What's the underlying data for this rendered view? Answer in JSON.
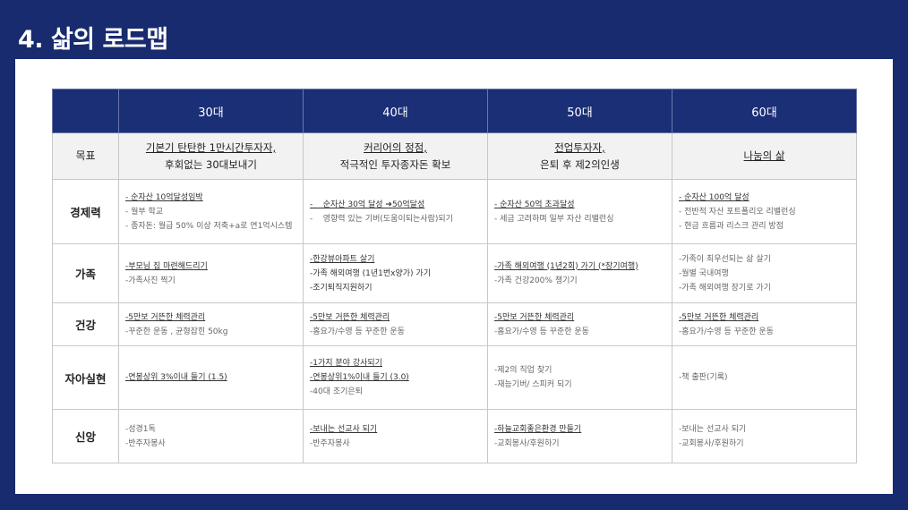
{
  "title": "4. 삶의 로드맵",
  "columns": [
    "",
    "30대",
    "40대",
    "50대",
    "60대"
  ],
  "goal": {
    "label": "목표",
    "cells": [
      [
        "기본기 탄탄한 1만시간투자자,",
        "후회없는 30대보내기"
      ],
      [
        "커리어의 정점,",
        "적극적인 투자종자돈 확보"
      ],
      [
        "전업투자자,",
        "은퇴 후 제2의인생"
      ],
      [
        "나눔의 삶"
      ]
    ]
  },
  "rows": [
    {
      "label": "경제력",
      "cells": [
        [
          {
            "t": "- 순자산 10억달성임박",
            "u": true
          },
          {
            "t": "- 월부 학교"
          },
          {
            "t": "- 종자돈: 월급 50% 이상 저축+a로 연1억시스템"
          }
        ],
        [
          {
            "t": "-    순자산 30억 달성 ➔50억달성",
            "u": true
          },
          {
            "t": "-    영향력 있는 기버(도움이되는사람)되기"
          }
        ],
        [
          {
            "t": "- 순자산 50억 초과달성",
            "u": true
          },
          {
            "t": "- 세금 고려하며 일부 자산 리밸런싱"
          }
        ],
        [
          {
            "t": "- 순자산 100억 달성",
            "u": true
          },
          {
            "t": "- 전반적 자산 포트폴리오 리밸런싱"
          },
          {
            "t": "- 현금 흐름과 리스크 관리 방점"
          }
        ]
      ]
    },
    {
      "label": "가족",
      "cells": [
        [
          {
            "t": "-부모님 집 마련해드리기",
            "u": true
          },
          {
            "t": "-가족사진 찍기"
          }
        ],
        [
          {
            "t": "-한강뷰아파트 살기",
            "u": true
          },
          {
            "t": "-가족 해외여행 (1년1번x양가) 가기",
            "d": true
          },
          {
            "t": "-조기퇴직지원하기",
            "d": true
          }
        ],
        [
          {
            "t": "-가족 해외여행 (1년2회) 가기 (*장기여행)",
            "u": true
          },
          {
            "t": "-가족 건강200% 챙기기"
          }
        ],
        [
          {
            "t": "-가족이 최우선되는 삶 살기"
          },
          {
            "t": "-월별 국내여행"
          },
          {
            "t": "-가족 해외여행 장기로 가기"
          }
        ]
      ]
    },
    {
      "label": "건강",
      "cells": [
        [
          {
            "t": "-5만보 거뜬한 체력관리",
            "u": true
          },
          {
            "t": "-꾸준한 운동 , 균형잡힌 50kg"
          }
        ],
        [
          {
            "t": "-5만보 거뜬한 체력관리",
            "u": true
          },
          {
            "t": "-홈요가/수영 등 꾸준한 운동"
          }
        ],
        [
          {
            "t": "-5만보 거뜬한 체력관리",
            "u": true
          },
          {
            "t": "-홈요가/수영 등 꾸준한 운동"
          }
        ],
        [
          {
            "t": "-5만보 거뜬한 체력관리",
            "u": true
          },
          {
            "t": "-홈요가/수영 등 꾸준한 운동"
          }
        ]
      ]
    },
    {
      "label": "자아실현",
      "cells": [
        [
          {
            "t": "-연봉상위 3%이내 들기 (1.5)",
            "u": true
          }
        ],
        [
          {
            "t": "-1가지 분야 강사되기",
            "u": true
          },
          {
            "t": "-연봉상위1%이내 들기 (3.0)",
            "u": true
          },
          {
            "t": "-40대 조기은퇴"
          }
        ],
        [
          {
            "t": "-제2의 직업 찾기"
          },
          {
            "t": "-재능기버/ 스피커 되기"
          }
        ],
        [
          {
            "t": "-책 출판(기록)"
          }
        ]
      ]
    },
    {
      "label": "신앙",
      "cells": [
        [
          {
            "t": "-성경1독"
          },
          {
            "t": "-반주자봉사"
          }
        ],
        [
          {
            "t": "-보내는 선교사 되기",
            "u": true
          },
          {
            "t": "-반주자봉사"
          }
        ],
        [
          {
            "t": "-하늘교회좋은환경 만들기",
            "u": true
          },
          {
            "t": "-교회봉사/후원하기"
          }
        ],
        [
          {
            "t": "-보내는 선교사 되기"
          },
          {
            "t": "-교회봉사/후원하기"
          }
        ]
      ]
    }
  ],
  "colors": {
    "navy": "#172b6e",
    "header": "#1b2f77",
    "goal_bg": "#f2f2f2"
  }
}
